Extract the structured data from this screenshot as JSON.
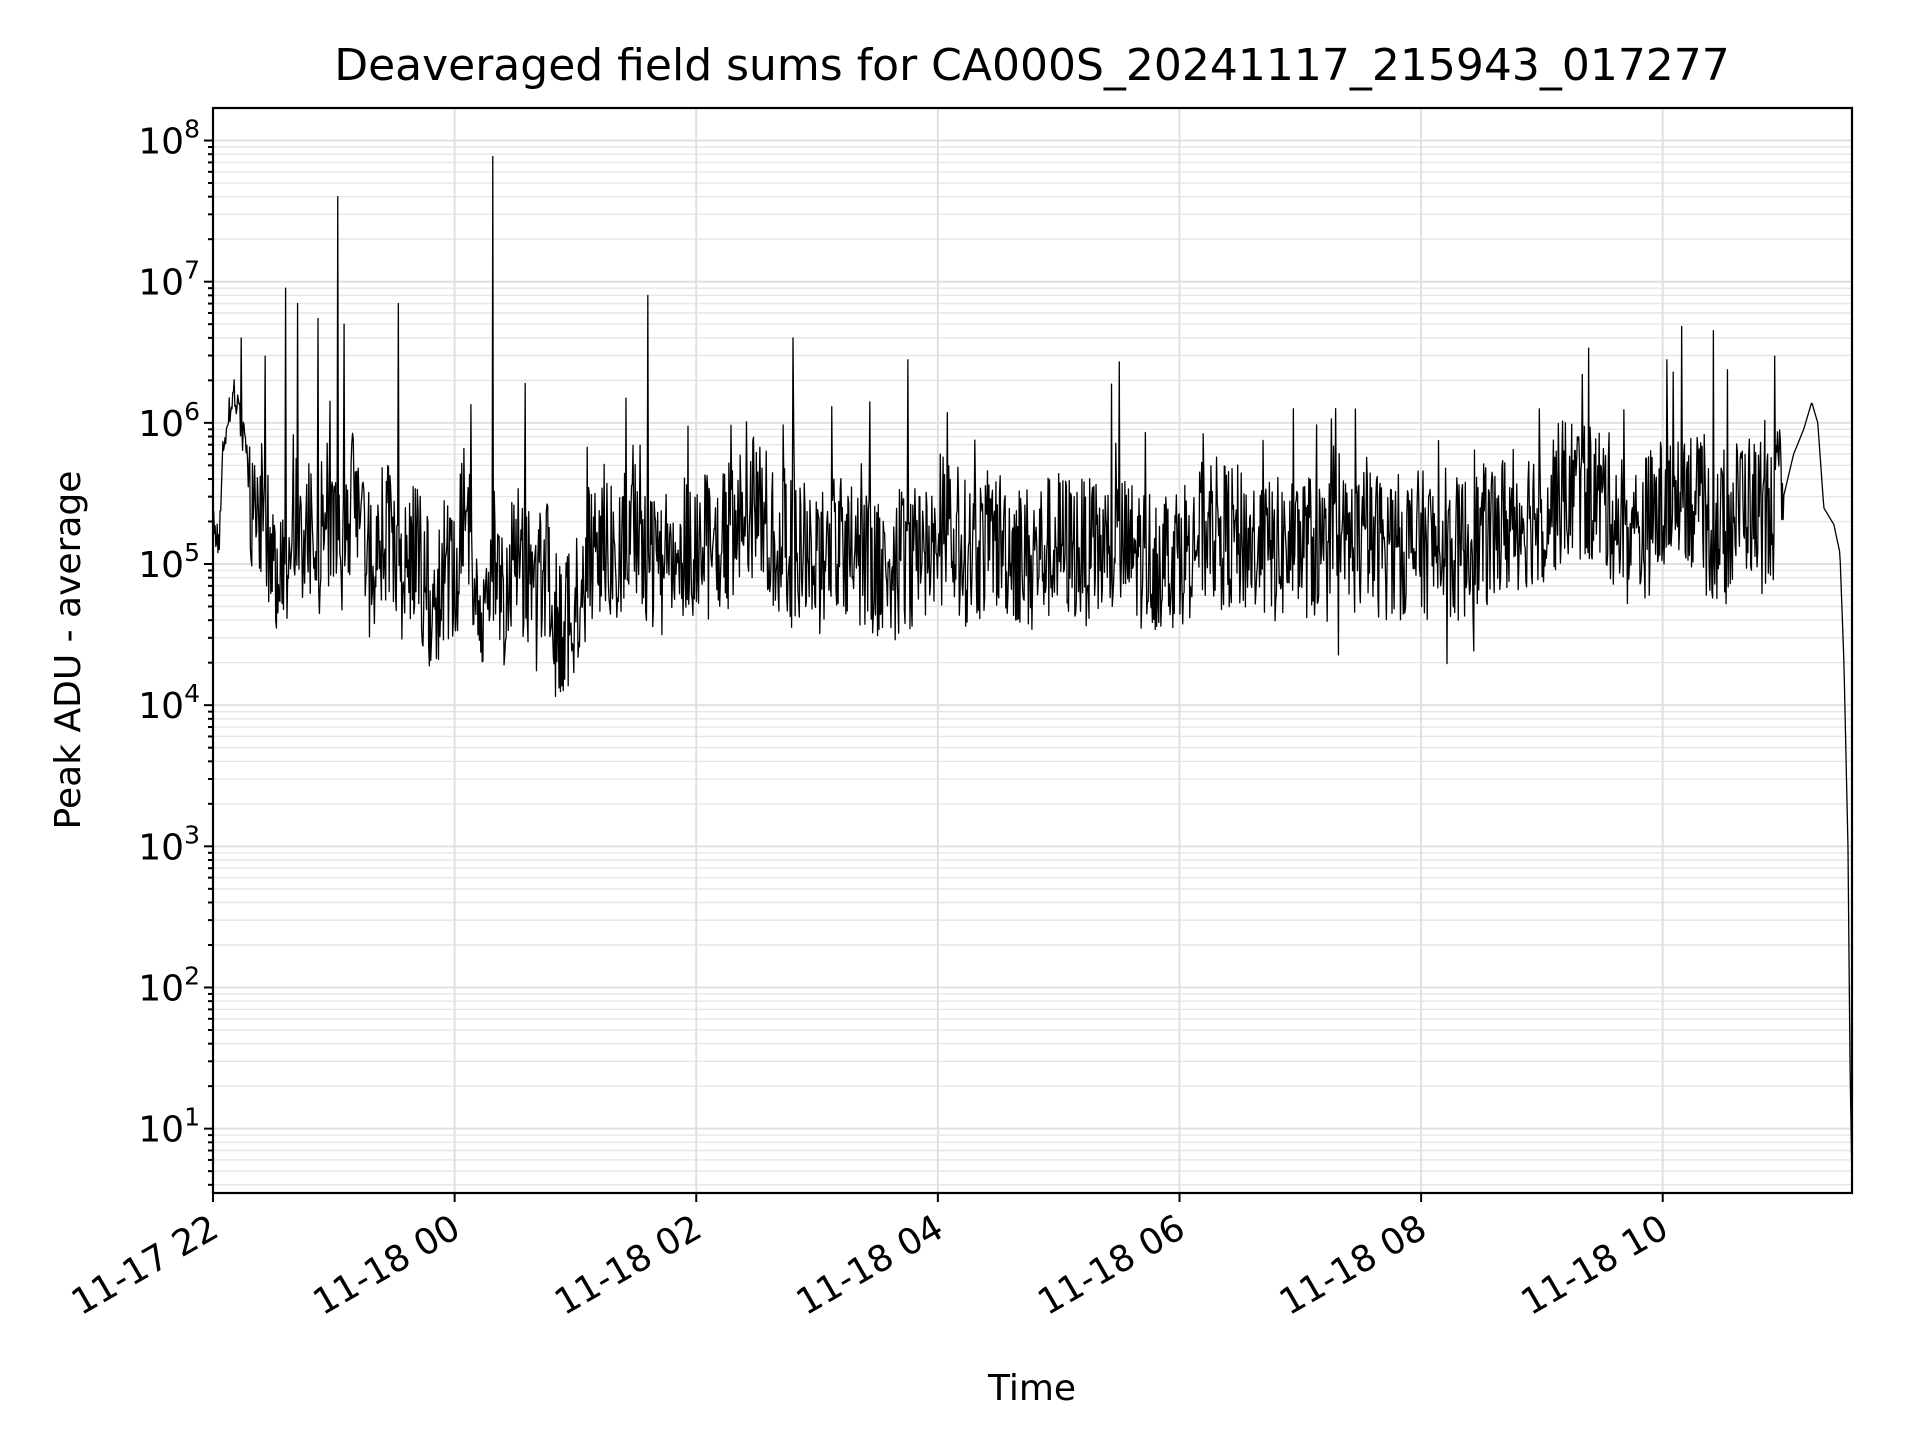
{
  "chart_data": {
    "type": "line",
    "title": "Deaveraged field sums for CA000S_20241117_215943_017277",
    "xlabel": "Time",
    "ylabel": "Peak ADU - average",
    "yscale": "log",
    "ylim": [
      3.5,
      170000000
    ],
    "xlim": [
      "2024-11-17 22:00",
      "2024-11-18 11:34"
    ],
    "grid": "major and minor",
    "legend": "none",
    "x_tick_labels": [
      "11-17 22",
      "11-18 00",
      "11-18 02",
      "11-18 04",
      "11-18 06",
      "11-18 08",
      "11-18 10"
    ],
    "y_tick_labels": [
      {
        "base": "10",
        "exp": "1",
        "value": 10
      },
      {
        "base": "10",
        "exp": "2",
        "value": 100
      },
      {
        "base": "10",
        "exp": "3",
        "value": 1000
      },
      {
        "base": "10",
        "exp": "4",
        "value": 10000
      },
      {
        "base": "10",
        "exp": "5",
        "value": 100000
      },
      {
        "base": "10",
        "exp": "6",
        "value": 1000000
      },
      {
        "base": "10",
        "exp": "7",
        "value": 10000000
      },
      {
        "base": "10",
        "exp": "8",
        "value": 100000000
      }
    ],
    "series": [
      {
        "color": "#000000",
        "points": [
          [
            "2024-11-17 22:00",
            200000
          ],
          [
            "2024-11-17 22:03",
            150000
          ],
          [
            "2024-11-17 22:05",
            600000
          ],
          [
            "2024-11-17 22:08",
            1200000
          ],
          [
            "2024-11-17 22:10",
            1600000
          ],
          [
            "2024-11-17 22:13",
            1200000
          ],
          [
            "2024-11-17 22:15",
            800000
          ],
          [
            "2024-11-17 22:18",
            400000
          ],
          [
            "2024-11-17 22:20",
            220000
          ],
          [
            "2024-11-17 22:25",
            250000
          ],
          [
            "2024-11-17 22:30",
            120000
          ],
          [
            "2024-11-17 22:35",
            90000
          ],
          [
            "2024-11-17 22:40",
            300000
          ],
          [
            "2024-11-17 22:45",
            130000
          ],
          [
            "2024-11-17 22:50",
            200000
          ],
          [
            "2024-11-17 22:53",
            100000
          ],
          [
            "2024-11-17 22:55",
            300000
          ],
          [
            "2024-11-17 23:00",
            150000
          ],
          [
            "2024-11-17 23:05",
            120000
          ],
          [
            "2024-11-17 23:10",
            400000
          ],
          [
            "2024-11-17 23:15",
            120000
          ],
          [
            "2024-11-17 23:20",
            80000
          ],
          [
            "2024-11-17 23:25",
            200000
          ],
          [
            "2024-11-17 23:30",
            100000
          ],
          [
            "2024-11-17 23:35",
            70000
          ],
          [
            "2024-11-17 23:40",
            150000
          ],
          [
            "2024-11-17 23:45",
            70000
          ],
          [
            "2024-11-17 23:50",
            50000
          ],
          [
            "2024-11-17 23:55",
            100000
          ],
          [
            "2024-11-18 00:00",
            60000
          ],
          [
            "2024-11-18 00:05",
            300000
          ],
          [
            "2024-11-18 00:10",
            80000
          ],
          [
            "2024-11-18 00:15",
            40000
          ],
          [
            "2024-11-18 00:20",
            120000
          ],
          [
            "2024-11-18 00:25",
            60000
          ],
          [
            "2024-11-18 00:30",
            150000
          ],
          [
            "2024-11-18 00:35",
            90000
          ],
          [
            "2024-11-18 00:40",
            60000
          ],
          [
            "2024-11-18 00:45",
            100000
          ],
          [
            "2024-11-18 00:50",
            35000
          ],
          [
            "2024-11-18 00:55",
            40000
          ],
          [
            "2024-11-18 01:00",
            60000
          ],
          [
            "2024-11-18 01:10",
            150000
          ],
          [
            "2024-11-18 01:20",
            100000
          ],
          [
            "2024-11-18 01:30",
            200000
          ],
          [
            "2024-11-18 01:40",
            80000
          ],
          [
            "2024-11-18 01:50",
            120000
          ],
          [
            "2024-11-18 02:00",
            150000
          ],
          [
            "2024-11-18 02:10",
            120000
          ],
          [
            "2024-11-18 02:20",
            200000
          ],
          [
            "2024-11-18 02:30",
            250000
          ],
          [
            "2024-11-18 02:40",
            150000
          ],
          [
            "2024-11-18 02:50",
            120000
          ],
          [
            "2024-11-18 03:00",
            100000
          ],
          [
            "2024-11-18 03:10",
            150000
          ],
          [
            "2024-11-18 03:20",
            120000
          ],
          [
            "2024-11-18 03:30",
            100000
          ],
          [
            "2024-11-18 03:40",
            90000
          ],
          [
            "2024-11-18 03:50",
            130000
          ],
          [
            "2024-11-18 04:00",
            140000
          ],
          [
            "2024-11-18 04:15",
            120000
          ],
          [
            "2024-11-18 04:30",
            150000
          ],
          [
            "2024-11-18 04:45",
            110000
          ],
          [
            "2024-11-18 05:00",
            140000
          ],
          [
            "2024-11-18 05:15",
            120000
          ],
          [
            "2024-11-18 05:30",
            130000
          ],
          [
            "2024-11-18 05:45",
            110000
          ],
          [
            "2024-11-18 06:00",
            120000
          ],
          [
            "2024-11-18 06:15",
            180000
          ],
          [
            "2024-11-18 06:30",
            150000
          ],
          [
            "2024-11-18 06:45",
            120000
          ],
          [
            "2024-11-18 07:00",
            140000
          ],
          [
            "2024-11-18 07:15",
            120000
          ],
          [
            "2024-11-18 07:30",
            150000
          ],
          [
            "2024-11-18 07:45",
            130000
          ],
          [
            "2024-11-18 08:00",
            140000
          ],
          [
            "2024-11-18 08:15",
            120000
          ],
          [
            "2024-11-18 08:30",
            150000
          ],
          [
            "2024-11-18 08:45",
            200000
          ],
          [
            "2024-11-18 09:00",
            250000
          ],
          [
            "2024-11-18 09:15",
            350000
          ],
          [
            "2024-11-18 09:30",
            300000
          ],
          [
            "2024-11-18 09:45",
            150000
          ],
          [
            "2024-11-18 10:00",
            250000
          ],
          [
            "2024-11-18 10:10",
            400000
          ],
          [
            "2024-11-18 10:20",
            200000
          ],
          [
            "2024-11-18 10:30",
            150000
          ],
          [
            "2024-11-18 10:40",
            300000
          ],
          [
            "2024-11-18 10:50",
            200000
          ],
          [
            "2024-11-18 11:00",
            300000
          ],
          [
            "2024-11-18 11:05",
            600000
          ],
          [
            "2024-11-18 11:10",
            900000
          ],
          [
            "2024-11-18 11:14",
            1400000
          ],
          [
            "2024-11-18 11:17",
            1000000
          ],
          [
            "2024-11-18 11:20",
            250000
          ],
          [
            "2024-11-18 11:25",
            190000
          ],
          [
            "2024-11-18 11:28",
            120000
          ],
          [
            "2024-11-18 11:30",
            20000
          ],
          [
            "2024-11-18 11:32",
            1000
          ],
          [
            "2024-11-18 11:33",
            30
          ],
          [
            "2024-11-18 11:34",
            4
          ]
        ]
      }
    ],
    "spikes": [
      [
        "2024-11-17 22:14",
        4000000
      ],
      [
        "2024-11-17 22:36",
        9000000
      ],
      [
        "2024-11-17 22:42",
        7000000
      ],
      [
        "2024-11-17 22:52",
        5500000
      ],
      [
        "2024-11-17 23:02",
        40000000
      ],
      [
        "2024-11-17 23:05",
        5000000
      ],
      [
        "2024-11-17 23:32",
        7000000
      ],
      [
        "2024-11-18 00:19",
        77000000
      ],
      [
        "2024-11-18 00:35",
        1900000
      ],
      [
        "2024-11-18 01:36",
        8000000
      ],
      [
        "2024-11-18 02:48",
        4000000
      ],
      [
        "2024-11-18 03:45",
        2800000
      ],
      [
        "2024-11-18 05:30",
        2700000
      ],
      [
        "2024-11-18 09:20",
        2200000
      ],
      [
        "2024-11-18 10:02",
        2800000
      ],
      [
        "2024-11-18 10:25",
        4500000
      ]
    ]
  }
}
